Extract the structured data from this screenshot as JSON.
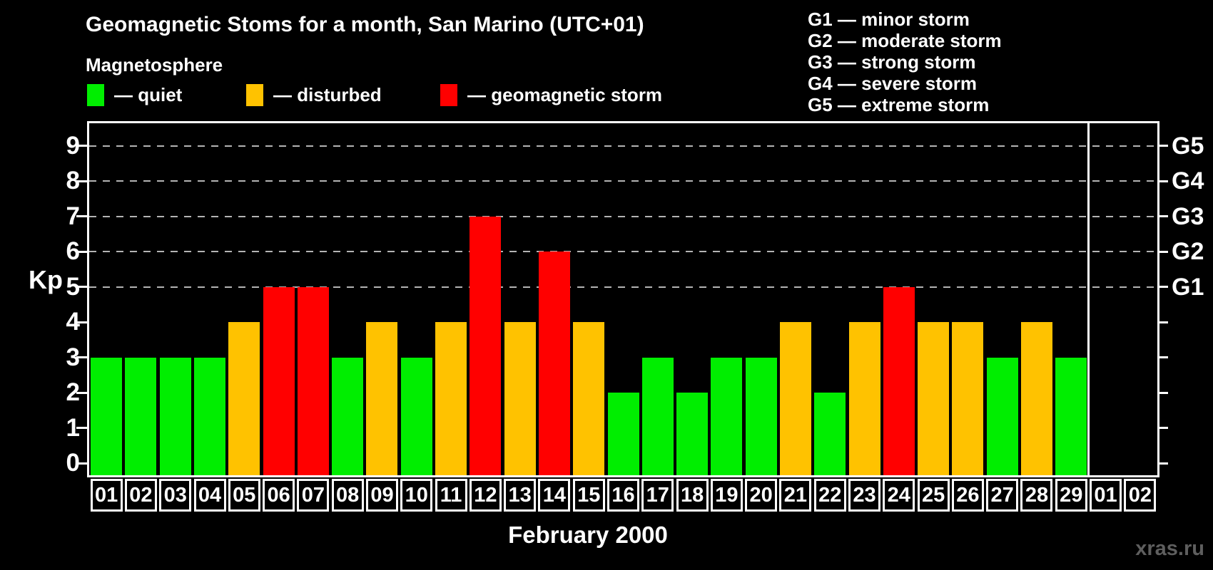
{
  "title": "Geomagnetic Stoms for a month, San Marino (UTC+01)",
  "subtitle": "Magnetosphere",
  "legend": {
    "items": [
      {
        "key": "quiet",
        "label": "— quiet",
        "color": "#00ee00"
      },
      {
        "key": "disturbed",
        "label": "— disturbed",
        "color": "#ffc200"
      },
      {
        "key": "storm",
        "label": "— geomagnetic storm",
        "color": "#ff0000"
      }
    ]
  },
  "g_legend": [
    "G1 — minor storm",
    "G2 — moderate storm",
    "G3 — strong storm",
    "G4 — severe storm",
    "G5 — extreme storm"
  ],
  "colors": {
    "quiet": "#00ee00",
    "disturbed": "#ffc200",
    "storm": "#ff0000",
    "axis": "#ffffff",
    "grid": "#b4b4b4",
    "background": "#000000",
    "watermark": "#5e5e5e"
  },
  "chart_data": {
    "type": "bar",
    "title": "Geomagnetic Stoms for a month, San Marino (UTC+01)",
    "xlabel": "February 2000",
    "ylabel": "Kp",
    "ylim": [
      0,
      9
    ],
    "yticks": [
      0,
      1,
      2,
      3,
      4,
      5,
      6,
      7,
      8,
      9
    ],
    "grid": "dashed horizontal at Kp 5-9 only",
    "gridline_levels": [
      5,
      6,
      7,
      8,
      9
    ],
    "right_axis_labels": [
      {
        "label": "G1",
        "kp": 5
      },
      {
        "label": "G2",
        "kp": 6
      },
      {
        "label": "G3",
        "kp": 7
      },
      {
        "label": "G4",
        "kp": 8
      },
      {
        "label": "G5",
        "kp": 9
      }
    ],
    "categories": [
      "01",
      "02",
      "03",
      "04",
      "05",
      "06",
      "07",
      "08",
      "09",
      "10",
      "11",
      "12",
      "13",
      "14",
      "15",
      "16",
      "17",
      "18",
      "19",
      "20",
      "21",
      "22",
      "23",
      "24",
      "25",
      "26",
      "27",
      "28",
      "29",
      "01",
      "02"
    ],
    "values": [
      3,
      3,
      3,
      3,
      4,
      5,
      5,
      3,
      4,
      3,
      4,
      7,
      4,
      6,
      4,
      2,
      3,
      2,
      3,
      3,
      4,
      2,
      4,
      5,
      4,
      4,
      3,
      4,
      3,
      null,
      null
    ],
    "statuses": [
      "quiet",
      "quiet",
      "quiet",
      "quiet",
      "disturbed",
      "storm",
      "storm",
      "quiet",
      "disturbed",
      "quiet",
      "disturbed",
      "storm",
      "disturbed",
      "storm",
      "disturbed",
      "quiet",
      "quiet",
      "quiet",
      "quiet",
      "quiet",
      "disturbed",
      "quiet",
      "disturbed",
      "storm",
      "disturbed",
      "disturbed",
      "quiet",
      "disturbed",
      "quiet",
      null,
      null
    ],
    "separator_after_index": 29,
    "legend_position": "top-left"
  },
  "month_label": "February 2000",
  "watermark": "xras.ru"
}
